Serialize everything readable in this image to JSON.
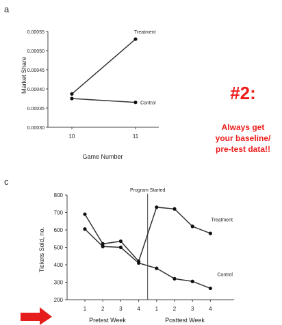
{
  "colors": {
    "annotation": "#ee1c1c",
    "arrow": "#e51d1d",
    "line": "#333333"
  },
  "annotation": {
    "heading": "#2:",
    "lines": [
      "Always get",
      "your  baseline/",
      "pre-test data!!"
    ]
  },
  "chart_data": [
    {
      "panel_label": "a",
      "type": "line",
      "x": [
        10,
        11
      ],
      "xlabel": "Game Number",
      "ylabel": "Market Share",
      "ylim": [
        0.0003,
        0.00055
      ],
      "yticks": [
        "0.00030",
        "0.00035",
        "0.00040",
        "0.00045",
        "0.00050",
        "0.00055"
      ],
      "xticks": [
        "10",
        "11"
      ],
      "series": [
        {
          "name": "Treatment",
          "values": [
            0.000387,
            0.00053
          ]
        },
        {
          "name": "Control",
          "values": [
            0.000375,
            0.000365
          ]
        }
      ],
      "grid": false,
      "legend": "direct labels at line ends"
    },
    {
      "panel_label": "c",
      "type": "line",
      "x": [
        1,
        2,
        3,
        4,
        5,
        6,
        7,
        8
      ],
      "xticks": [
        "1",
        "2",
        "3",
        "4",
        "1",
        "2",
        "3",
        "4"
      ],
      "ylabel": "Tickets Sold, no.",
      "ylim": [
        200,
        800
      ],
      "yticks": [
        "200",
        "300",
        "400",
        "500",
        "600",
        "700",
        "800"
      ],
      "group_labels": [
        "Pretest Week",
        "Posttest Week"
      ],
      "vline_label": "Program Started",
      "series": [
        {
          "name": "Treatment",
          "values": [
            690,
            520,
            535,
            420,
            730,
            720,
            620,
            580
          ]
        },
        {
          "name": "Control",
          "values": [
            605,
            505,
            500,
            410,
            380,
            320,
            305,
            265
          ]
        }
      ],
      "grid": false,
      "legend": "direct labels at line ends"
    }
  ]
}
